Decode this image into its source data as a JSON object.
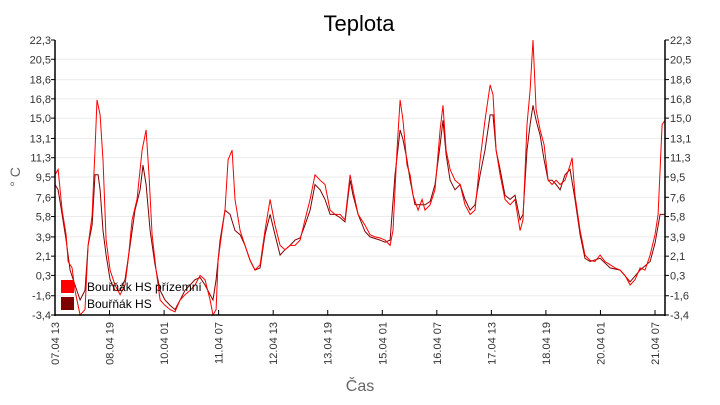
{
  "chart_data": {
    "type": "line",
    "title": "Teplota",
    "xlabel": "Čas",
    "ylabel": "° C",
    "x_unit": "hours since 07.04 13:00",
    "xlim": [
      0,
      335.5
    ],
    "ylim": [
      -3.4,
      22.3
    ],
    "grid": true,
    "legend_placement": "bottom-left",
    "y_ticks": [
      -3.4,
      -1.6,
      0.3,
      2.1,
      3.9,
      5.8,
      7.6,
      9.5,
      11.3,
      13.1,
      15.0,
      16.8,
      18.6,
      20.5,
      22.3
    ],
    "y_tick_labels": [
      "-3,4",
      "-1,6",
      "0,3",
      "2,1",
      "3,9",
      "5,8",
      "7,6",
      "9,5",
      "11,3",
      "13,1",
      "15,0",
      "16,8",
      "18,6",
      "20,5",
      "22,3"
    ],
    "x_ticks": [
      0,
      30,
      60,
      90,
      120,
      150,
      180,
      210,
      240,
      270,
      300,
      330
    ],
    "x_tick_labels": [
      "07.04 13",
      "08.04 19",
      "10.04 01",
      "11.04 07",
      "12.04 13",
      "13.04 19",
      "15.04 01",
      "16.04 07",
      "17.04 13",
      "18.04 19",
      "20.04 01",
      "21.04 07"
    ],
    "series": [
      {
        "name": "Bouřňák HS přízemní",
        "color": "#ff0000",
        "points": [
          [
            0,
            9.7
          ],
          [
            1.7,
            10.2
          ],
          [
            3.9,
            6.4
          ],
          [
            6.1,
            4.1
          ],
          [
            7.2,
            1.6
          ],
          [
            9.4,
            1.0
          ],
          [
            11,
            -1.1
          ],
          [
            13.8,
            -3.4
          ],
          [
            16.5,
            -2.9
          ],
          [
            18.2,
            3.1
          ],
          [
            20.4,
            5.9
          ],
          [
            22,
            12.0
          ],
          [
            23.1,
            16.7
          ],
          [
            24.8,
            15.3
          ],
          [
            26.4,
            11.1
          ],
          [
            28.1,
            3.6
          ],
          [
            30.3,
            0.8
          ],
          [
            33,
            -0.6
          ],
          [
            35.8,
            -1.5
          ],
          [
            38.5,
            -0.6
          ],
          [
            40.2,
            1.7
          ],
          [
            42.4,
            5.5
          ],
          [
            45.1,
            7.4
          ],
          [
            47.9,
            12.0
          ],
          [
            50.1,
            13.9
          ],
          [
            51.7,
            9.7
          ],
          [
            53.4,
            4.1
          ],
          [
            55.6,
            0.8
          ],
          [
            57.8,
            -2.0
          ],
          [
            60.5,
            -2.5
          ],
          [
            63.3,
            -2.9
          ],
          [
            66,
            -3.1
          ],
          [
            68.8,
            -2.0
          ],
          [
            71.5,
            -1.5
          ],
          [
            74.3,
            -1.1
          ],
          [
            77,
            -0.6
          ],
          [
            79.8,
            0.3
          ],
          [
            82.5,
            -0.1
          ],
          [
            85.3,
            -2.0
          ],
          [
            86.9,
            -3.4
          ],
          [
            88.6,
            -2.9
          ],
          [
            89.7,
            1.7
          ],
          [
            91.9,
            4.5
          ],
          [
            93.5,
            6.4
          ],
          [
            95.2,
            11.1
          ],
          [
            97.4,
            12.0
          ],
          [
            99,
            7.4
          ],
          [
            101.8,
            4.5
          ],
          [
            104.5,
            3.1
          ],
          [
            107.3,
            1.7
          ],
          [
            110,
            0.8
          ],
          [
            112.8,
            1.3
          ],
          [
            115.5,
            4.5
          ],
          [
            118.3,
            7.4
          ],
          [
            121,
            5.0
          ],
          [
            123.8,
            3.1
          ],
          [
            126.5,
            2.7
          ],
          [
            129.3,
            3.1
          ],
          [
            132,
            3.1
          ],
          [
            134.8,
            3.6
          ],
          [
            137.5,
            5.5
          ],
          [
            140.3,
            7.4
          ],
          [
            143,
            9.7
          ],
          [
            145.8,
            9.2
          ],
          [
            148.5,
            8.8
          ],
          [
            151.3,
            6.4
          ],
          [
            154,
            6.0
          ],
          [
            156.8,
            6.0
          ],
          [
            159.5,
            5.5
          ],
          [
            162.3,
            9.7
          ],
          [
            163.9,
            8.3
          ],
          [
            166.7,
            6.0
          ],
          [
            170.5,
            5.0
          ],
          [
            173.3,
            4.1
          ],
          [
            176,
            3.9
          ],
          [
            178.8,
            3.8
          ],
          [
            181.5,
            3.6
          ],
          [
            184.3,
            3.1
          ],
          [
            185.9,
            4.5
          ],
          [
            188.1,
            12.0
          ],
          [
            189.8,
            16.7
          ],
          [
            191.4,
            14.8
          ],
          [
            193.6,
            10.6
          ],
          [
            195.3,
            9.7
          ],
          [
            196.9,
            7.8
          ],
          [
            199.7,
            6.4
          ],
          [
            201.9,
            7.4
          ],
          [
            203.5,
            6.4
          ],
          [
            206.3,
            6.9
          ],
          [
            209,
            8.3
          ],
          [
            211.8,
            13.9
          ],
          [
            213.4,
            16.2
          ],
          [
            215.1,
            12.0
          ],
          [
            217.3,
            10.2
          ],
          [
            220,
            9.2
          ],
          [
            222.8,
            8.8
          ],
          [
            225.5,
            6.9
          ],
          [
            228.3,
            6.0
          ],
          [
            231,
            6.4
          ],
          [
            233.8,
            11.1
          ],
          [
            236.5,
            14.8
          ],
          [
            239.3,
            18.1
          ],
          [
            240.9,
            17.2
          ],
          [
            242.6,
            12.0
          ],
          [
            244.8,
            9.7
          ],
          [
            247.5,
            7.4
          ],
          [
            250.3,
            6.9
          ],
          [
            253,
            7.4
          ],
          [
            255.8,
            4.5
          ],
          [
            257.4,
            5.5
          ],
          [
            259.6,
            14.4
          ],
          [
            261.3,
            17.6
          ],
          [
            262.9,
            22.3
          ],
          [
            264.6,
            15.8
          ],
          [
            266.8,
            13.9
          ],
          [
            269,
            12.5
          ],
          [
            271.2,
            9.2
          ],
          [
            273.4,
            8.8
          ],
          [
            275.6,
            9.2
          ],
          [
            277.8,
            8.8
          ],
          [
            280.5,
            9.2
          ],
          [
            283.3,
            10.6
          ],
          [
            284.4,
            11.3
          ],
          [
            286,
            7.8
          ],
          [
            288.8,
            4.5
          ],
          [
            291.5,
            2.2
          ],
          [
            294.3,
            1.7
          ],
          [
            297,
            1.6
          ],
          [
            299.8,
            2.2
          ],
          [
            302.5,
            1.6
          ],
          [
            305.3,
            1.3
          ],
          [
            308,
            1.0
          ],
          [
            310.8,
            0.8
          ],
          [
            313.5,
            0.3
          ],
          [
            316.3,
            -0.6
          ],
          [
            319,
            -0.1
          ],
          [
            321.8,
            1.0
          ],
          [
            324.5,
            0.8
          ],
          [
            327.3,
            2.2
          ],
          [
            330,
            4.1
          ],
          [
            331.7,
            6.0
          ],
          [
            333.9,
            14.4
          ],
          [
            335.5,
            14.8
          ]
        ]
      },
      {
        "name": "Bouřňák HS",
        "color": "#7f0000",
        "points": [
          [
            0,
            8.8
          ],
          [
            1.7,
            8.3
          ],
          [
            3.9,
            6.0
          ],
          [
            6.1,
            3.6
          ],
          [
            8.3,
            0.8
          ],
          [
            11,
            -0.6
          ],
          [
            13.8,
            -2.0
          ],
          [
            16.5,
            -1.1
          ],
          [
            18.2,
            3.1
          ],
          [
            20.4,
            5.0
          ],
          [
            22,
            9.7
          ],
          [
            23.7,
            9.7
          ],
          [
            24.8,
            8.3
          ],
          [
            26.4,
            4.5
          ],
          [
            28.1,
            2.2
          ],
          [
            30.3,
            -0.1
          ],
          [
            33,
            -1.1
          ],
          [
            35.8,
            -1.1
          ],
          [
            38.5,
            -0.1
          ],
          [
            41.3,
            3.1
          ],
          [
            44,
            6.4
          ],
          [
            46.8,
            8.3
          ],
          [
            48.4,
            10.6
          ],
          [
            50.1,
            8.8
          ],
          [
            52.3,
            4.5
          ],
          [
            55,
            1.3
          ],
          [
            57.8,
            -1.1
          ],
          [
            60.5,
            -2.0
          ],
          [
            63.3,
            -2.5
          ],
          [
            66,
            -2.9
          ],
          [
            68.8,
            -2.0
          ],
          [
            71.5,
            -1.1
          ],
          [
            74.3,
            -0.6
          ],
          [
            77,
            -0.1
          ],
          [
            79.8,
            0.1
          ],
          [
            82.5,
            -0.6
          ],
          [
            85.3,
            -1.5
          ],
          [
            86.9,
            -2.0
          ],
          [
            88.6,
            -0.1
          ],
          [
            90.8,
            3.6
          ],
          [
            93.5,
            6.4
          ],
          [
            96.3,
            6.0
          ],
          [
            99,
            4.5
          ],
          [
            101.8,
            4.1
          ],
          [
            104.5,
            3.1
          ],
          [
            107.3,
            1.7
          ],
          [
            110,
            0.8
          ],
          [
            112.8,
            1.0
          ],
          [
            115.5,
            4.1
          ],
          [
            118.3,
            6.0
          ],
          [
            121,
            4.1
          ],
          [
            123.8,
            2.2
          ],
          [
            126.5,
            2.7
          ],
          [
            129.3,
            3.1
          ],
          [
            132,
            3.6
          ],
          [
            134.8,
            3.8
          ],
          [
            137.5,
            5.0
          ],
          [
            140.3,
            6.4
          ],
          [
            143,
            8.8
          ],
          [
            145.8,
            8.3
          ],
          [
            148.5,
            7.4
          ],
          [
            151.3,
            6.0
          ],
          [
            154,
            6.0
          ],
          [
            156.8,
            5.7
          ],
          [
            159.5,
            5.3
          ],
          [
            162.3,
            9.2
          ],
          [
            163.9,
            7.8
          ],
          [
            166.7,
            6.0
          ],
          [
            170.5,
            4.4
          ],
          [
            173.3,
            3.9
          ],
          [
            178.8,
            3.6
          ],
          [
            181.5,
            3.4
          ],
          [
            184.3,
            3.6
          ],
          [
            187,
            9.7
          ],
          [
            189.8,
            13.9
          ],
          [
            191.4,
            13.0
          ],
          [
            193.6,
            11.1
          ],
          [
            195.3,
            9.2
          ],
          [
            198,
            6.9
          ],
          [
            200.8,
            6.9
          ],
          [
            203.5,
            6.9
          ],
          [
            206.3,
            7.2
          ],
          [
            209,
            8.8
          ],
          [
            211.8,
            12.5
          ],
          [
            213.4,
            14.8
          ],
          [
            215.1,
            11.6
          ],
          [
            217.3,
            9.2
          ],
          [
            220,
            8.3
          ],
          [
            222.8,
            8.8
          ],
          [
            225.5,
            7.4
          ],
          [
            228.3,
            6.4
          ],
          [
            231,
            6.9
          ],
          [
            233.8,
            9.7
          ],
          [
            236.5,
            12.0
          ],
          [
            239.3,
            15.3
          ],
          [
            240.9,
            15.3
          ],
          [
            242.6,
            12.0
          ],
          [
            244.8,
            10.2
          ],
          [
            247.5,
            7.8
          ],
          [
            250.3,
            7.4
          ],
          [
            253,
            7.8
          ],
          [
            255.8,
            5.5
          ],
          [
            257.4,
            6.0
          ],
          [
            259.6,
            12.0
          ],
          [
            261.3,
            14.4
          ],
          [
            262.9,
            16.2
          ],
          [
            264.6,
            14.8
          ],
          [
            266.8,
            13.4
          ],
          [
            269,
            11.1
          ],
          [
            271.2,
            9.2
          ],
          [
            273.4,
            9.2
          ],
          [
            275.6,
            8.8
          ],
          [
            277.8,
            8.3
          ],
          [
            280.5,
            9.7
          ],
          [
            283.3,
            10.2
          ],
          [
            286,
            7.4
          ],
          [
            288.8,
            4.1
          ],
          [
            291.5,
            1.9
          ],
          [
            294.3,
            1.6
          ],
          [
            299.8,
            1.9
          ],
          [
            305.3,
            1.0
          ],
          [
            310.8,
            0.8
          ],
          [
            316.3,
            -0.3
          ],
          [
            321.8,
            0.8
          ],
          [
            327.3,
            1.6
          ],
          [
            330,
            3.3
          ],
          [
            332.8,
            6.0
          ],
          [
            335.5,
            6.0
          ]
        ]
      }
    ]
  }
}
